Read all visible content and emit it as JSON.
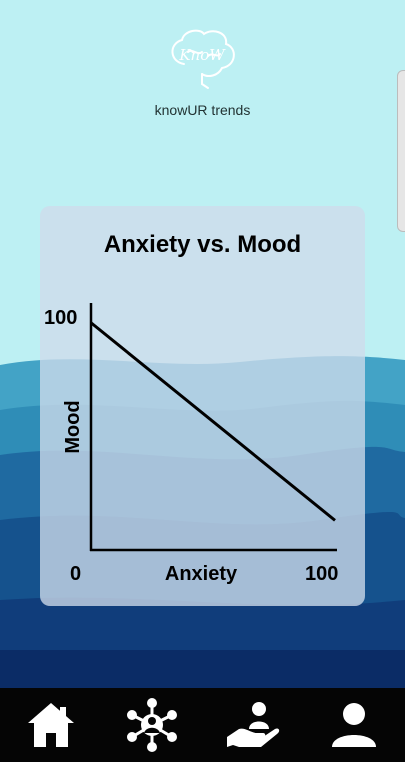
{
  "app": {
    "name": "knowUR trends",
    "logo_text": "KnoW"
  },
  "chart_data": {
    "type": "line",
    "title": "Anxiety vs. Mood",
    "xlabel": "Anxiety",
    "ylabel": "Mood",
    "xlim": [
      0,
      100
    ],
    "ylim": [
      0,
      100
    ],
    "x_ticks": [
      "0",
      "100"
    ],
    "y_ticks": [
      "100"
    ],
    "series": [
      {
        "x": [
          0,
          100
        ],
        "y": [
          92,
          12
        ]
      }
    ]
  },
  "nav": {
    "items": [
      {
        "icon": "home-icon"
      },
      {
        "icon": "network-icon"
      },
      {
        "icon": "care-hand-icon"
      },
      {
        "icon": "profile-icon"
      }
    ]
  },
  "colors": {
    "sky": "#bdf0f3",
    "wave_light": "#2f8db7",
    "wave_mid": "#1f6aa1",
    "wave_dark": "#103d7b",
    "card": "#cedbea",
    "nav_bar": "#050505"
  }
}
